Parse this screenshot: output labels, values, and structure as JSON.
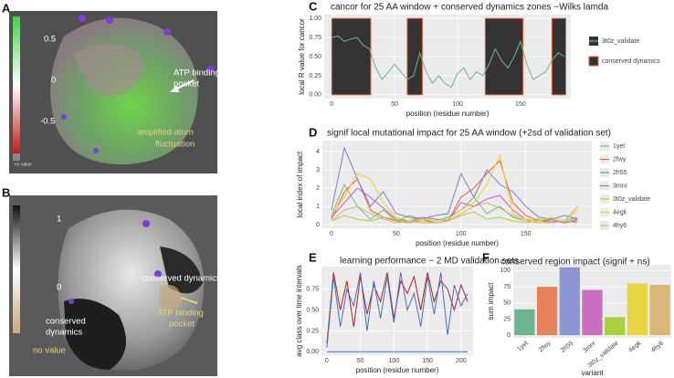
{
  "images": [
    {
      "letter": "A",
      "scale": [
        "0.5",
        "0",
        "-0.5",
        "no value"
      ],
      "annotations": [
        "ATP binding",
        "pocket",
        "amplified atom",
        "fluctuation"
      ]
    },
    {
      "letter": "B",
      "scale": [
        "1",
        "0",
        "no value"
      ],
      "annotations": [
        "conserved dynamics",
        "conserved",
        "dynamics",
        "ATP binding",
        "pocket"
      ]
    }
  ],
  "chart_data": [
    {
      "type": "line",
      "panel": "C",
      "title": "cancor for 25 AA window + conserved dynamics zones −Wilks lamda",
      "xlabel": "position (residue number)",
      "ylabel": "local R value for cancor",
      "x": [
        0,
        5,
        10,
        15,
        20,
        25,
        30,
        35,
        40,
        45,
        50,
        55,
        60,
        65,
        70,
        75,
        80,
        85,
        90,
        95,
        100,
        105,
        110,
        115,
        120,
        125,
        130,
        135,
        140,
        145,
        150,
        155,
        160,
        165,
        170,
        175,
        180,
        185
      ],
      "series": [
        {
          "name": "3t0z_validate",
          "color": "#6db58f",
          "values": [
            0.75,
            0.77,
            0.7,
            0.73,
            0.75,
            0.65,
            0.6,
            0.35,
            0.2,
            0.3,
            0.4,
            0.3,
            0.2,
            0.25,
            0.55,
            0.3,
            0.15,
            0.25,
            0.15,
            0.1,
            0.28,
            0.35,
            0.2,
            0.3,
            0.25,
            0.4,
            0.6,
            0.45,
            0.35,
            0.5,
            0.7,
            0.4,
            0.2,
            0.25,
            0.3,
            0.45,
            0.55,
            0.5
          ]
        }
      ],
      "zones": {
        "name": "conserved dynamics",
        "color": "#333333",
        "border": "#e8623c",
        "spans": [
          [
            0,
            31
          ],
          [
            60,
            72
          ],
          [
            122,
            152
          ],
          [
            175,
            186
          ]
        ],
        "range": [
          0,
          1
        ]
      },
      "xlim": [
        -6,
        190
      ],
      "xticks": [
        0,
        50,
        100,
        150
      ],
      "ylim": [
        -0.05,
        1.05
      ],
      "yticks": [
        {
          "value": 0,
          "label": "0.00"
        },
        {
          "value": 0.25,
          "label": "0.25"
        },
        {
          "value": 0.5,
          "label": "0.50"
        },
        {
          "value": 0.75,
          "label": "0.75"
        },
        {
          "value": 1,
          "label": "1.00"
        }
      ],
      "grid": true,
      "legend": "right"
    },
    {
      "type": "line",
      "panel": "D",
      "title": "signif local mutational impact for 25 AA window (+2sd of validation set)",
      "xlabel": "position (residue number)",
      "ylabel": "local index of impact",
      "x": [
        0,
        10,
        20,
        30,
        40,
        50,
        60,
        70,
        80,
        90,
        100,
        110,
        120,
        130,
        140,
        150,
        160,
        170,
        180,
        190
      ],
      "series": [
        {
          "name": "1yet",
          "color": "#7cb870",
          "values": [
            0.5,
            2.2,
            1.0,
            0.3,
            0.8,
            0.2,
            0.5,
            0.3,
            0.2,
            0.4,
            0.8,
            1.5,
            0.6,
            1.0,
            0.4,
            0.2,
            0.3,
            0.1,
            0.2,
            0.4
          ]
        },
        {
          "name": "2fwy",
          "color": "#e8623c",
          "values": [
            0.3,
            1.8,
            2.5,
            0.8,
            0.4,
            0.2,
            0.1,
            0.3,
            0.1,
            0.2,
            1.5,
            2.0,
            2.8,
            3.5,
            1.2,
            0.5,
            0.2,
            0.3,
            0.1,
            0.2
          ]
        },
        {
          "name": "2h55",
          "color": "#7b7fd6",
          "values": [
            0.8,
            4.2,
            2.5,
            1.0,
            1.8,
            0.6,
            0.4,
            0.3,
            0.5,
            0.6,
            2.8,
            1.5,
            3.0,
            2.2,
            1.8,
            1.0,
            0.4,
            0.3,
            0.5,
            0.3
          ]
        },
        {
          "name": "3mnr",
          "color": "#c75ec0",
          "values": [
            0.4,
            1.2,
            2.0,
            1.5,
            0.9,
            0.3,
            0.2,
            0.4,
            0.3,
            0.2,
            1.2,
            1.0,
            1.4,
            1.6,
            0.8,
            0.3,
            0.2,
            0.2,
            0.1,
            0.3
          ]
        },
        {
          "name": "3t0z_validate",
          "color": "#a7d040",
          "values": [
            0.2,
            0.5,
            0.3,
            0.2,
            0.4,
            0.3,
            0.1,
            0.2,
            0.1,
            0.2,
            0.5,
            0.7,
            0.3,
            0.4,
            0.2,
            0.1,
            0.2,
            0.1,
            0.2,
            0.1
          ]
        },
        {
          "name": "4egk",
          "color": "#e8d32a",
          "values": [
            0.5,
            1.5,
            2.8,
            2.5,
            1.2,
            0.4,
            0.2,
            0.3,
            0.2,
            0.3,
            0.8,
            1.2,
            2.2,
            3.8,
            0.6,
            0.3,
            0.2,
            0.4,
            0.2,
            0.8
          ]
        },
        {
          "name": "4hy6",
          "color": "#d6b47a",
          "values": [
            0.2,
            0.8,
            1.0,
            0.6,
            0.3,
            0.1,
            0.2,
            0.1,
            0.1,
            0.2,
            0.6,
            1.0,
            1.2,
            0.9,
            0.5,
            0.2,
            0.1,
            0.1,
            0.2,
            1.0
          ]
        }
      ],
      "xlim": [
        -7,
        201
      ],
      "xticks": [
        0,
        50,
        100,
        150
      ],
      "ylim": [
        -0.2,
        4.6
      ],
      "yticks": [
        0,
        1,
        2,
        3,
        4
      ],
      "grid": true,
      "legend": "right"
    },
    {
      "type": "line",
      "panel": "E",
      "title": "learning performance − 2 MD validation sets",
      "xlabel": "position (residue number)",
      "ylabel": "avg class over time intervals",
      "x": [
        0,
        10,
        20,
        30,
        40,
        50,
        60,
        70,
        80,
        90,
        100,
        110,
        120,
        130,
        140,
        150,
        160,
        170,
        180,
        190,
        200,
        210
      ],
      "series": [
        {
          "color": "#b22222",
          "values": [
            0.1,
            0.95,
            0.5,
            0.85,
            0.3,
            0.9,
            0.45,
            0.8,
            0.6,
            0.95,
            0.4,
            0.85,
            0.7,
            0.9,
            0.5,
            0.95,
            0.6,
            0.85,
            0.75,
            0.5,
            0.8,
            0.6
          ]
        },
        {
          "color": "#4a6fc4",
          "values": [
            0.05,
            0.9,
            0.3,
            0.75,
            0.55,
            0.95,
            0.25,
            0.85,
            0.4,
            0.9,
            0.35,
            0.95,
            0.5,
            0.7,
            0.3,
            0.9,
            0.45,
            0.95,
            0.2,
            0.8,
            0.55,
            0.7
          ]
        },
        {
          "color": "#4a6fc4",
          "values": [
            0,
            0,
            0,
            0,
            0,
            0,
            0,
            0,
            0,
            0,
            0,
            0,
            0,
            0,
            0,
            0,
            0,
            0,
            0,
            0,
            0,
            0
          ]
        }
      ],
      "xlim": [
        -8,
        218
      ],
      "xticks": [
        0,
        50,
        100,
        150,
        200
      ],
      "ylim": [
        -0.04,
        1.02
      ],
      "yticks": [
        {
          "value": 0,
          "label": "0.00"
        },
        {
          "value": 0.25,
          "label": "0.25"
        },
        {
          "value": 0.5,
          "label": "0.50"
        },
        {
          "value": 0.75,
          "label": "0.75"
        }
      ],
      "grid": true
    },
    {
      "type": "bar",
      "panel": "F",
      "title": "conserved region impact (signif + ns)",
      "xlabel": "variant",
      "ylabel": "sum impact",
      "categories": [
        "1yet",
        "2fwy",
        "2h55",
        "3mnr",
        "3t0z_validate",
        "4egk",
        "4hy6"
      ],
      "values": [
        40,
        75,
        105,
        70,
        28,
        80,
        78
      ],
      "colors": [
        "#6db58f",
        "#e8825c",
        "#8a95d1",
        "#cc6ec0",
        "#a7d040",
        "#e8d440",
        "#d9b77a"
      ],
      "ylim": [
        -4,
        109
      ],
      "yticks": [
        0,
        25,
        50,
        75,
        100
      ],
      "grid": true
    }
  ]
}
